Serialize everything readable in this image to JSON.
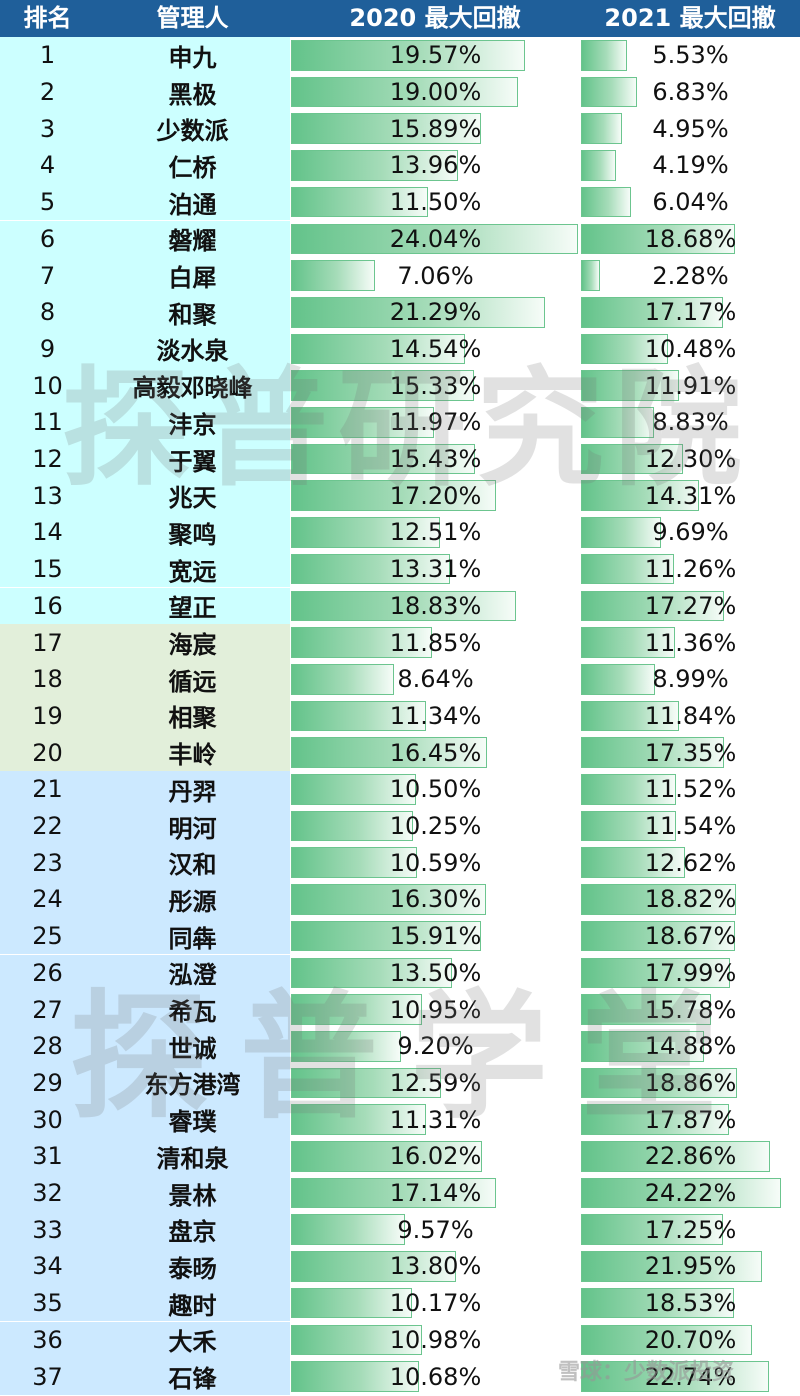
{
  "header": {
    "rank": "排名",
    "manager": "管理人",
    "col2020": "2020 最大回撤",
    "col2021": "2021 最大回撤"
  },
  "colors": {
    "header_bg": "#1f5f9a",
    "group_1_16": "#ccffff",
    "group_17_20": "#e2efda",
    "group_21_37": "#cce9ff",
    "bar_green": "#63c38a"
  },
  "rows": [
    {
      "rank": "1",
      "name": "申九",
      "v2020": "19.57%",
      "v2021": "5.53%"
    },
    {
      "rank": "2",
      "name": "黑极",
      "v2020": "19.00%",
      "v2021": "6.83%"
    },
    {
      "rank": "3",
      "name": "少数派",
      "v2020": "15.89%",
      "v2021": "4.95%"
    },
    {
      "rank": "4",
      "name": "仁桥",
      "v2020": "13.96%",
      "v2021": "4.19%"
    },
    {
      "rank": "5",
      "name": "泊通",
      "v2020": "11.50%",
      "v2021": "6.04%"
    },
    {
      "rank": "6",
      "name": "磐耀",
      "v2020": "24.04%",
      "v2021": "18.68%"
    },
    {
      "rank": "7",
      "name": "白犀",
      "v2020": "7.06%",
      "v2021": "2.28%"
    },
    {
      "rank": "8",
      "name": "和聚",
      "v2020": "21.29%",
      "v2021": "17.17%"
    },
    {
      "rank": "9",
      "name": "淡水泉",
      "v2020": "14.54%",
      "v2021": "10.48%"
    },
    {
      "rank": "10",
      "name": "高毅邓晓峰",
      "v2020": "15.33%",
      "v2021": "11.91%"
    },
    {
      "rank": "11",
      "name": "沣京",
      "v2020": "11.97%",
      "v2021": "8.83%"
    },
    {
      "rank": "12",
      "name": "于翼",
      "v2020": "15.43%",
      "v2021": "12.30%"
    },
    {
      "rank": "13",
      "name": "兆天",
      "v2020": "17.20%",
      "v2021": "14.31%"
    },
    {
      "rank": "14",
      "name": "聚鸣",
      "v2020": "12.51%",
      "v2021": "9.69%"
    },
    {
      "rank": "15",
      "name": "宽远",
      "v2020": "13.31%",
      "v2021": "11.26%"
    },
    {
      "rank": "16",
      "name": "望正",
      "v2020": "18.83%",
      "v2021": "17.27%"
    },
    {
      "rank": "17",
      "name": "海宸",
      "v2020": "11.85%",
      "v2021": "11.36%"
    },
    {
      "rank": "18",
      "name": "循远",
      "v2020": "8.64%",
      "v2021": "8.99%"
    },
    {
      "rank": "19",
      "name": "相聚",
      "v2020": "11.34%",
      "v2021": "11.84%"
    },
    {
      "rank": "20",
      "name": "丰岭",
      "v2020": "16.45%",
      "v2021": "17.35%"
    },
    {
      "rank": "21",
      "name": "丹羿",
      "v2020": "10.50%",
      "v2021": "11.52%"
    },
    {
      "rank": "22",
      "name": "明河",
      "v2020": "10.25%",
      "v2021": "11.54%"
    },
    {
      "rank": "23",
      "name": "汉和",
      "v2020": "10.59%",
      "v2021": "12.62%"
    },
    {
      "rank": "24",
      "name": "彤源",
      "v2020": "16.30%",
      "v2021": "18.82%"
    },
    {
      "rank": "25",
      "name": "同犇",
      "v2020": "15.91%",
      "v2021": "18.67%"
    },
    {
      "rank": "26",
      "name": "泓澄",
      "v2020": "13.50%",
      "v2021": "17.99%"
    },
    {
      "rank": "27",
      "name": "希瓦",
      "v2020": "10.95%",
      "v2021": "15.78%"
    },
    {
      "rank": "28",
      "name": "世诚",
      "v2020": "9.20%",
      "v2021": "14.88%"
    },
    {
      "rank": "29",
      "name": "东方港湾",
      "v2020": "12.59%",
      "v2021": "18.86%"
    },
    {
      "rank": "30",
      "name": "睿璞",
      "v2020": "11.31%",
      "v2021": "17.87%"
    },
    {
      "rank": "31",
      "name": "清和泉",
      "v2020": "16.02%",
      "v2021": "22.86%"
    },
    {
      "rank": "32",
      "name": "景林",
      "v2020": "17.14%",
      "v2021": "24.22%"
    },
    {
      "rank": "33",
      "name": "盘京",
      "v2020": "9.57%",
      "v2021": "17.25%"
    },
    {
      "rank": "34",
      "name": "泰旸",
      "v2020": "13.80%",
      "v2021": "21.95%"
    },
    {
      "rank": "35",
      "name": "趣时",
      "v2020": "10.17%",
      "v2021": "18.53%"
    },
    {
      "rank": "36",
      "name": "大禾",
      "v2020": "10.98%",
      "v2021": "20.70%"
    },
    {
      "rank": "37",
      "name": "石锋",
      "v2020": "10.68%",
      "v2021": "22.74%"
    }
  ],
  "watermarks": {
    "upper": "探普研究院",
    "lower": "探普学堂",
    "corner": "雪球：少数派投资"
  }
}
